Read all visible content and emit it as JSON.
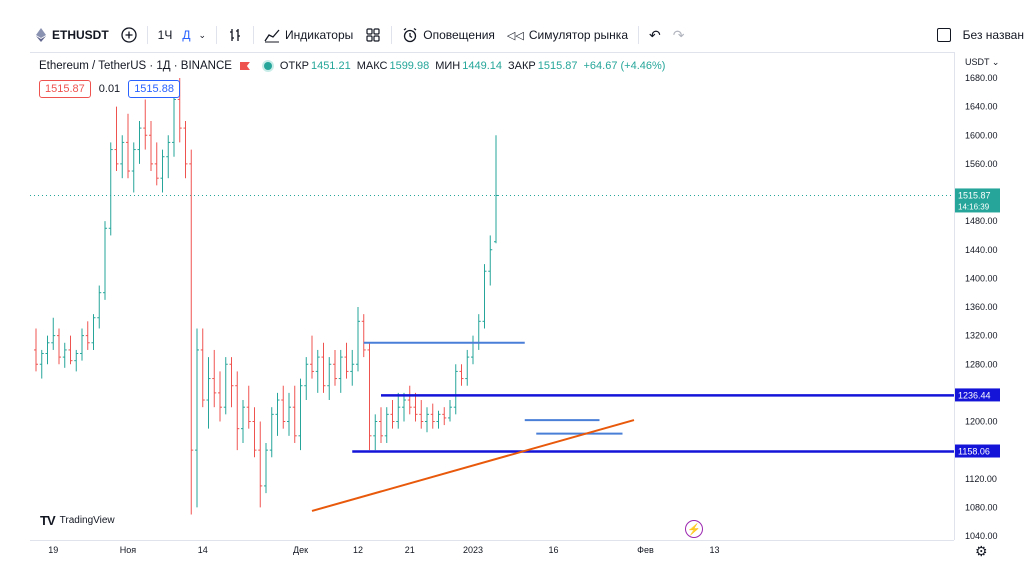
{
  "toolbar": {
    "symbol": "ETHUSDT",
    "interval": "1Ч",
    "interval_unit": "Д",
    "indicators_label": "Индикаторы",
    "alerts_label": "Оповещения",
    "simulator_label": "Симулятор рынка",
    "layout_label": "Без назван"
  },
  "legend": {
    "name": "Ethereum / TetherUS · 1Д · BINANCE",
    "open_label": "ОТКР",
    "open": "1451.21",
    "high_label": "МАКС",
    "high": "1599.98",
    "low_label": "МИН",
    "low": "1449.14",
    "close_label": "ЗАКР",
    "close": "1515.87",
    "change": "+64.67 (+4.46%)"
  },
  "order": {
    "sell": "1515.87",
    "spread": "0.01",
    "buy": "1515.88"
  },
  "watermark": "TradingView",
  "currency": "USDT",
  "colors": {
    "up": "#26a69a",
    "down": "#ef5350",
    "level_line": "#1414d9",
    "trend_line": "#e8590c",
    "range_line": "#4a7fd8",
    "current_price_bg": "#26a69a"
  },
  "chart_data": {
    "type": "ohlc",
    "symbol": "Ethereum / TetherUS",
    "exchange": "BINANCE",
    "timeframe": "1Д",
    "ylim": [
      1040,
      1680
    ],
    "y_ticks": [
      1040,
      1080,
      1120,
      1160,
      1200,
      1240,
      1280,
      1320,
      1360,
      1400,
      1440,
      1480,
      1520,
      1560,
      1600,
      1640,
      1680
    ],
    "y_tick_labels": [
      "1040.00",
      "1080.00",
      "1120.00",
      "1160.00",
      "1200.00",
      "1240.00",
      "1280.00",
      "1320.00",
      "1360.00",
      "1400.00",
      "1440.00",
      "1480.00",
      "1520.00",
      "1560.00",
      "1600.00",
      "1640.00",
      "1680.00"
    ],
    "x_ticks": [
      {
        "label": "19",
        "bar": 3
      },
      {
        "label": "Ноя",
        "bar": 16
      },
      {
        "label": "14",
        "bar": 29
      },
      {
        "label": "Дек",
        "bar": 46
      },
      {
        "label": "12",
        "bar": 56
      },
      {
        "label": "21",
        "bar": 65
      },
      {
        "label": "2023",
        "bar": 76
      },
      {
        "label": "16",
        "bar": 90
      },
      {
        "label": "Фев",
        "bar": 106
      },
      {
        "label": "13",
        "bar": 118
      }
    ],
    "bars_visible": 120,
    "candles": [
      [
        1300,
        1330,
        1270,
        1280
      ],
      [
        1280,
        1300,
        1260,
        1295
      ],
      [
        1295,
        1320,
        1280,
        1310
      ],
      [
        1310,
        1345,
        1300,
        1320
      ],
      [
        1320,
        1330,
        1280,
        1290
      ],
      [
        1290,
        1310,
        1275,
        1300
      ],
      [
        1300,
        1320,
        1280,
        1285
      ],
      [
        1285,
        1300,
        1270,
        1295
      ],
      [
        1295,
        1330,
        1285,
        1320
      ],
      [
        1320,
        1340,
        1300,
        1310
      ],
      [
        1310,
        1350,
        1300,
        1345
      ],
      [
        1345,
        1390,
        1330,
        1380
      ],
      [
        1380,
        1480,
        1370,
        1470
      ],
      [
        1470,
        1590,
        1460,
        1580
      ],
      [
        1580,
        1640,
        1550,
        1560
      ],
      [
        1560,
        1600,
        1540,
        1590
      ],
      [
        1590,
        1630,
        1540,
        1550
      ],
      [
        1550,
        1590,
        1520,
        1580
      ],
      [
        1580,
        1620,
        1560,
        1610
      ],
      [
        1610,
        1650,
        1580,
        1600
      ],
      [
        1600,
        1620,
        1550,
        1560
      ],
      [
        1560,
        1590,
        1530,
        1540
      ],
      [
        1540,
        1580,
        1520,
        1570
      ],
      [
        1570,
        1600,
        1540,
        1590
      ],
      [
        1590,
        1660,
        1570,
        1650
      ],
      [
        1650,
        1680,
        1590,
        1610
      ],
      [
        1610,
        1620,
        1540,
        1560
      ],
      [
        1560,
        1580,
        1070,
        1160
      ],
      [
        1160,
        1330,
        1080,
        1300
      ],
      [
        1300,
        1330,
        1220,
        1230
      ],
      [
        1230,
        1290,
        1190,
        1260
      ],
      [
        1260,
        1300,
        1220,
        1240
      ],
      [
        1240,
        1270,
        1200,
        1220
      ],
      [
        1220,
        1290,
        1210,
        1280
      ],
      [
        1280,
        1290,
        1220,
        1250
      ],
      [
        1250,
        1270,
        1160,
        1190
      ],
      [
        1190,
        1230,
        1170,
        1220
      ],
      [
        1220,
        1250,
        1190,
        1200
      ],
      [
        1200,
        1220,
        1150,
        1160
      ],
      [
        1160,
        1200,
        1080,
        1110
      ],
      [
        1110,
        1170,
        1100,
        1160
      ],
      [
        1160,
        1220,
        1150,
        1210
      ],
      [
        1210,
        1240,
        1180,
        1230
      ],
      [
        1230,
        1250,
        1190,
        1200
      ],
      [
        1200,
        1240,
        1180,
        1220
      ],
      [
        1220,
        1250,
        1170,
        1180
      ],
      [
        1180,
        1260,
        1160,
        1250
      ],
      [
        1250,
        1290,
        1230,
        1280
      ],
      [
        1280,
        1320,
        1260,
        1270
      ],
      [
        1270,
        1300,
        1240,
        1290
      ],
      [
        1290,
        1310,
        1240,
        1250
      ],
      [
        1250,
        1290,
        1230,
        1280
      ],
      [
        1280,
        1300,
        1250,
        1260
      ],
      [
        1260,
        1300,
        1240,
        1290
      ],
      [
        1290,
        1310,
        1260,
        1270
      ],
      [
        1270,
        1300,
        1250,
        1280
      ],
      [
        1280,
        1360,
        1270,
        1340
      ],
      [
        1340,
        1350,
        1290,
        1300
      ],
      [
        1300,
        1310,
        1160,
        1180
      ],
      [
        1180,
        1210,
        1160,
        1200
      ],
      [
        1200,
        1220,
        1170,
        1180
      ],
      [
        1180,
        1220,
        1170,
        1210
      ],
      [
        1210,
        1230,
        1190,
        1200
      ],
      [
        1200,
        1240,
        1190,
        1220
      ],
      [
        1220,
        1240,
        1200,
        1230
      ],
      [
        1230,
        1250,
        1210,
        1220
      ],
      [
        1220,
        1240,
        1200,
        1210
      ],
      [
        1210,
        1230,
        1190,
        1200
      ],
      [
        1200,
        1220,
        1185,
        1210
      ],
      [
        1210,
        1225,
        1190,
        1200
      ],
      [
        1200,
        1215,
        1190,
        1210
      ],
      [
        1210,
        1220,
        1195,
        1205
      ],
      [
        1205,
        1230,
        1200,
        1220
      ],
      [
        1220,
        1280,
        1210,
        1270
      ],
      [
        1270,
        1280,
        1250,
        1260
      ],
      [
        1260,
        1300,
        1250,
        1290
      ],
      [
        1290,
        1320,
        1280,
        1310
      ],
      [
        1310,
        1350,
        1300,
        1340
      ],
      [
        1340,
        1420,
        1330,
        1410
      ],
      [
        1410,
        1460,
        1390,
        1440
      ],
      [
        1451.21,
        1599.98,
        1449.14,
        1515.87
      ]
    ]
  },
  "levels": {
    "resistance": "1236.44",
    "support": "1158.06",
    "current_price": "1515.87",
    "countdown": "14:16:39"
  }
}
